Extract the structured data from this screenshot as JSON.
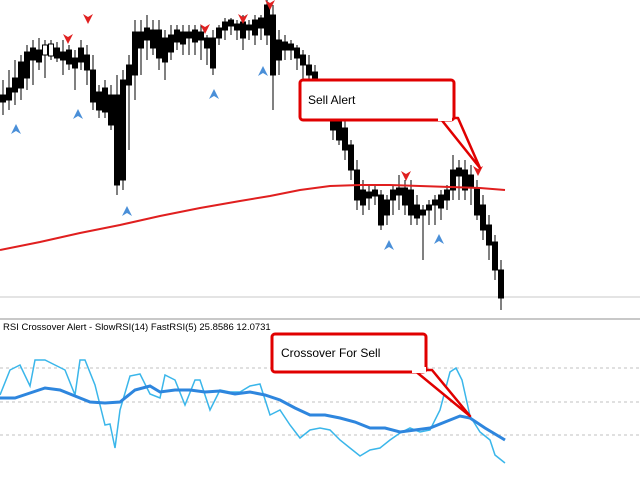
{
  "indicator": {
    "name": "RSI Crossover Alert - SlowRSI(14) FastRSI(5)",
    "value_slow": "25.8586",
    "value_fast": "12.0731"
  },
  "callouts": {
    "sell_alert": "Sell Alert",
    "crossover_for_sell": "Crossover For Sell"
  },
  "colors": {
    "bull_candle_body": "#ffffff",
    "bear_candle_body": "#000000",
    "moving_average": "#e01f1f",
    "slow_rsi": "#2e86de",
    "fast_rsi": "#3ab6ea",
    "buy_arrow": "#4a8fd8",
    "sell_arrow": "#e02020",
    "callout_border": "#e00000"
  },
  "icons": {
    "buy_arrow": "up-arrow-icon",
    "sell_arrow": "down-arrow-icon"
  }
}
